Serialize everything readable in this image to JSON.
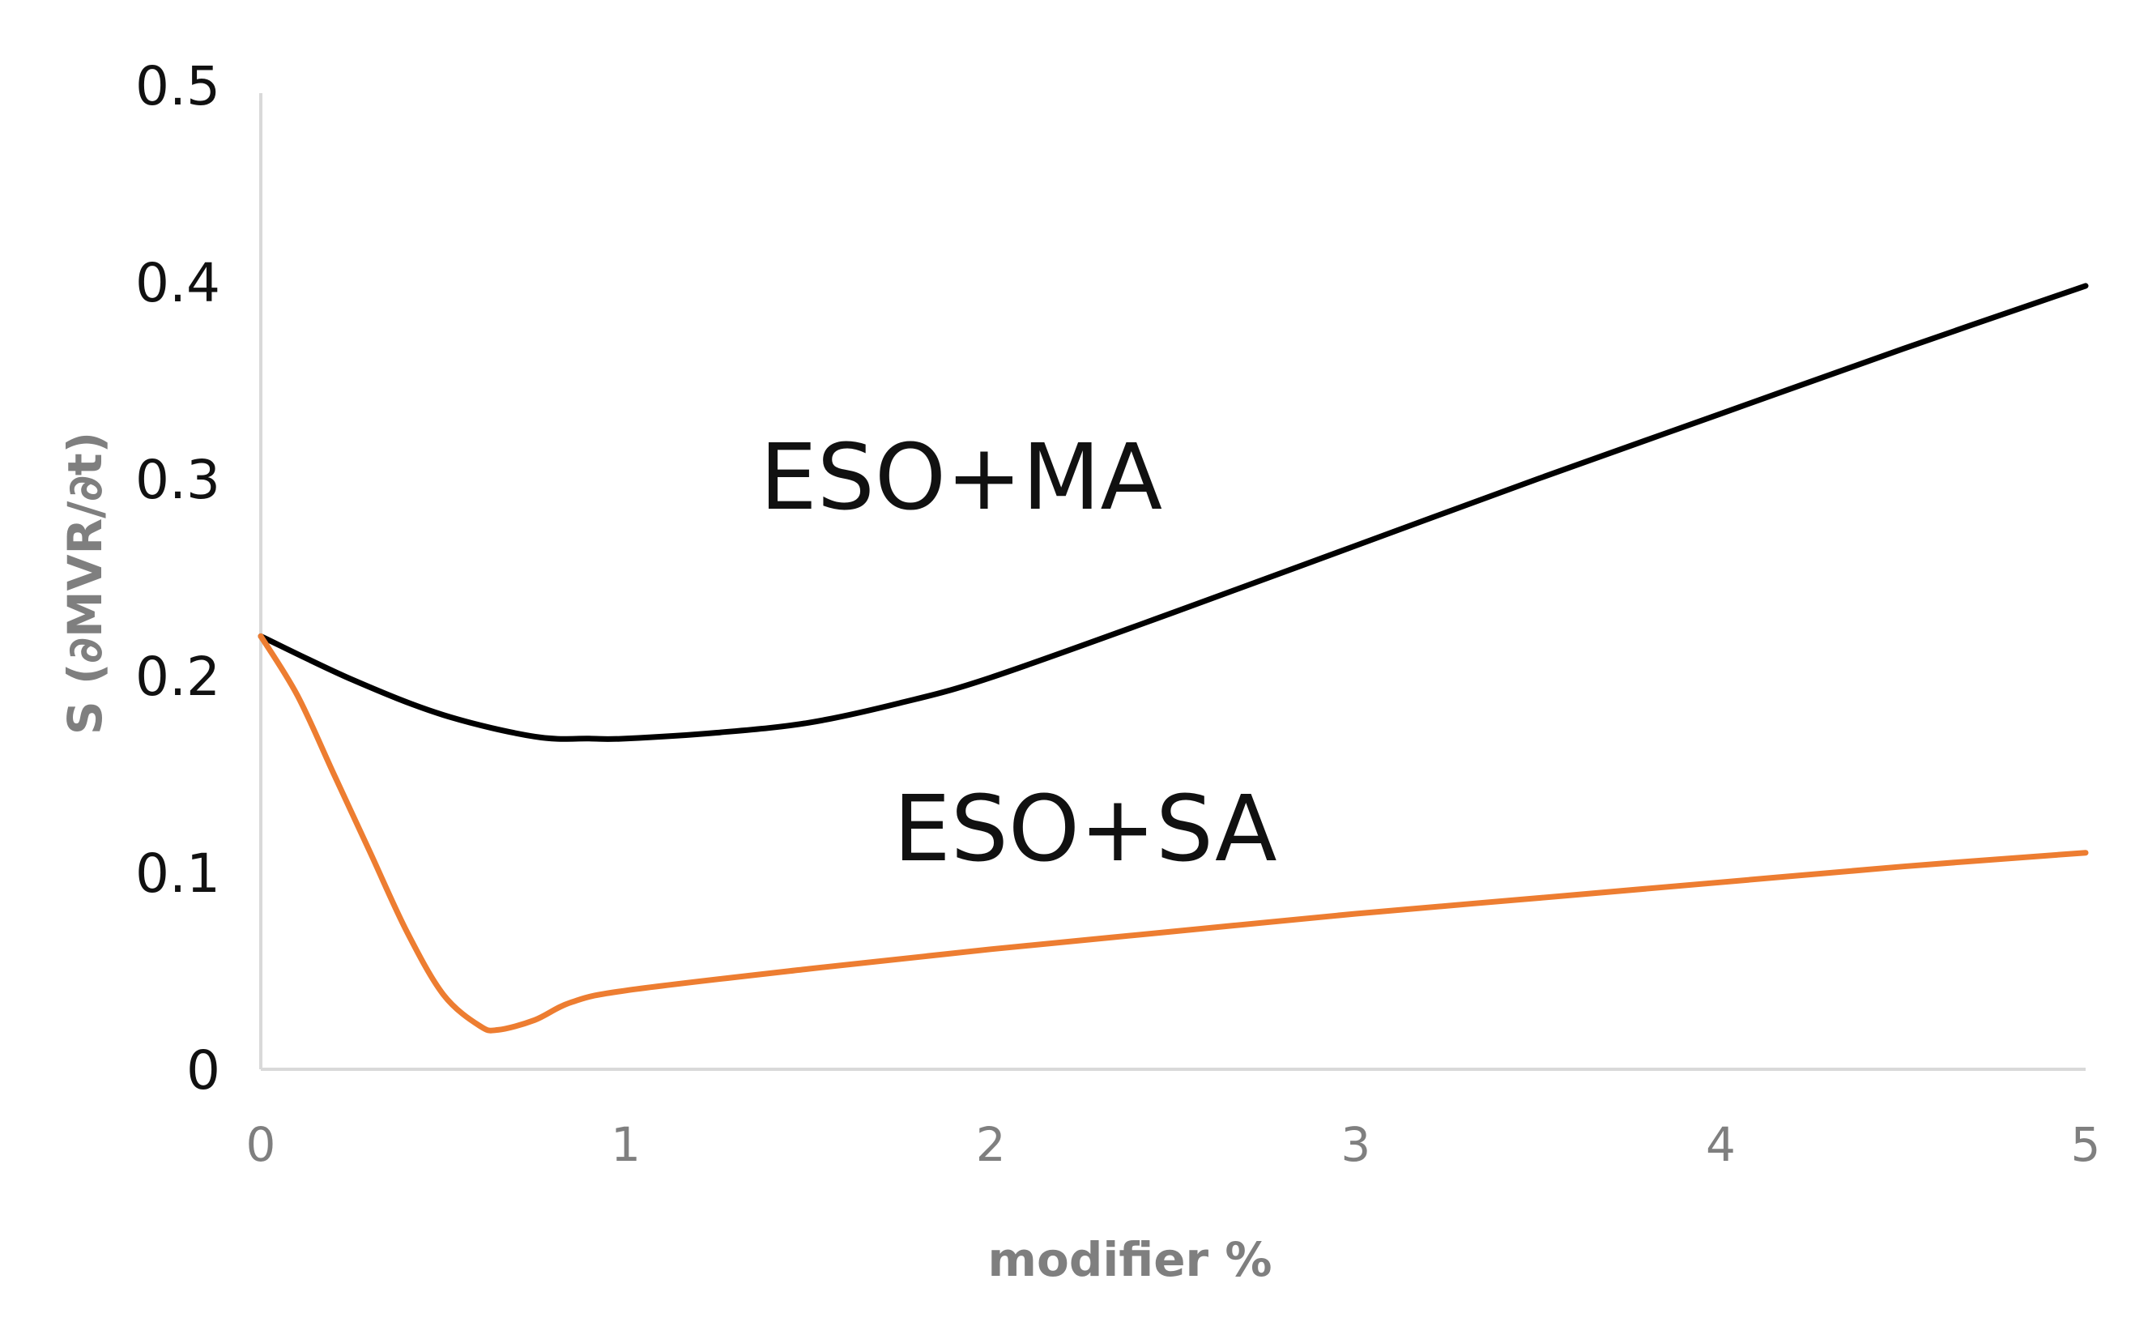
{
  "chart_data": {
    "type": "line",
    "title": "",
    "xlabel": "modifier %",
    "ylabel": "S (∂MVR/∂t)",
    "xlim": [
      0,
      5
    ],
    "ylim": [
      0,
      0.5
    ],
    "x_ticks": [
      "0",
      "1",
      "2",
      "3",
      "4",
      "5"
    ],
    "y_ticks": [
      "0",
      "0.1",
      "0.2",
      "0.3",
      "0.4",
      "0.5"
    ],
    "grid": false,
    "legend": "none",
    "annotations": [
      "ESO+MA",
      "ESO+SA"
    ],
    "series": [
      {
        "name": "ESO+MA",
        "color": "#000000",
        "points": [
          [
            0,
            0.22
          ],
          [
            0.25,
            0.198
          ],
          [
            0.5,
            0.18
          ],
          [
            0.75,
            0.169
          ],
          [
            0.9,
            0.168
          ],
          [
            1.0,
            0.168
          ],
          [
            1.25,
            0.171
          ],
          [
            1.5,
            0.176
          ],
          [
            1.75,
            0.186
          ],
          [
            2.0,
            0.199
          ],
          [
            2.5,
            0.232
          ],
          [
            3.0,
            0.266
          ],
          [
            3.5,
            0.3
          ],
          [
            4.0,
            0.333
          ],
          [
            4.5,
            0.366
          ],
          [
            5.0,
            0.398
          ]
        ]
      },
      {
        "name": "ESO+SA",
        "color": "#ed7d31",
        "points": [
          [
            0,
            0.22
          ],
          [
            0.1,
            0.19
          ],
          [
            0.2,
            0.15
          ],
          [
            0.3,
            0.11
          ],
          [
            0.4,
            0.07
          ],
          [
            0.5,
            0.038
          ],
          [
            0.6,
            0.022
          ],
          [
            0.65,
            0.02
          ],
          [
            0.75,
            0.025
          ],
          [
            0.85,
            0.034
          ],
          [
            1.0,
            0.04
          ],
          [
            1.5,
            0.051
          ],
          [
            2.0,
            0.061
          ],
          [
            2.5,
            0.07
          ],
          [
            3.0,
            0.079
          ],
          [
            3.5,
            0.087
          ],
          [
            4.0,
            0.095
          ],
          [
            4.5,
            0.103
          ],
          [
            5.0,
            0.11
          ]
        ]
      }
    ]
  }
}
